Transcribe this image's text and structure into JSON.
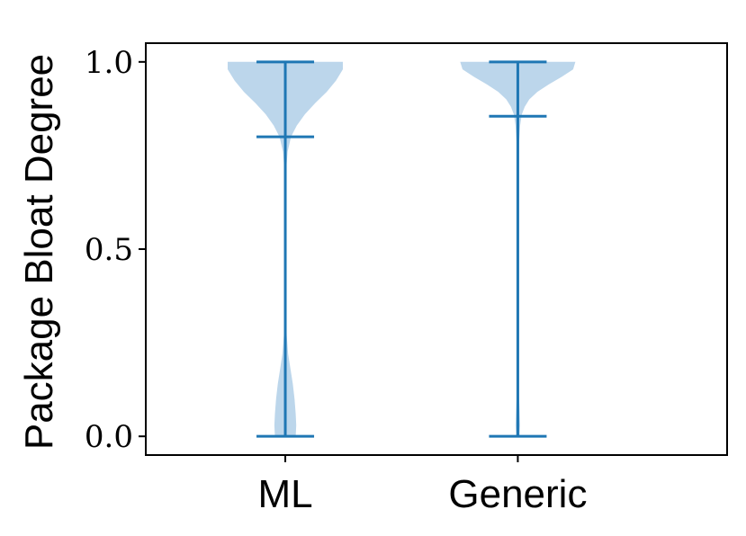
{
  "chart_data": {
    "type": "violin",
    "title": "",
    "xlabel": "",
    "ylabel": "Package Bloat Degree",
    "categories": [
      "ML",
      "Generic"
    ],
    "ylim": [
      -0.05,
      1.05
    ],
    "yticks": [
      {
        "value": 0.0,
        "label": "0.0"
      },
      {
        "value": 0.5,
        "label": "0.5"
      },
      {
        "value": 1.0,
        "label": "1.0"
      }
    ],
    "grid": false,
    "legend": "none",
    "colors": {
      "body": "#bcd6eb",
      "lines": "#1f77b4"
    },
    "series": [
      {
        "category": "ML",
        "min": 0.0,
        "max": 1.0,
        "median": 0.8,
        "density": [
          [
            1.0,
            0.5
          ],
          [
            0.98,
            0.5
          ],
          [
            0.95,
            0.44
          ],
          [
            0.92,
            0.36
          ],
          [
            0.89,
            0.26
          ],
          [
            0.86,
            0.17
          ],
          [
            0.83,
            0.1
          ],
          [
            0.8,
            0.05
          ],
          [
            0.76,
            0.02
          ],
          [
            0.72,
            0.01
          ],
          [
            0.6,
            0.004
          ],
          [
            0.45,
            0.004
          ],
          [
            0.33,
            0.006
          ],
          [
            0.27,
            0.012
          ],
          [
            0.22,
            0.025
          ],
          [
            0.18,
            0.045
          ],
          [
            0.14,
            0.065
          ],
          [
            0.1,
            0.08
          ],
          [
            0.06,
            0.09
          ],
          [
            0.03,
            0.095
          ],
          [
            0.0,
            0.09
          ]
        ]
      },
      {
        "category": "Generic",
        "min": 0.0,
        "max": 1.0,
        "median": 0.855,
        "density": [
          [
            1.0,
            0.5
          ],
          [
            0.98,
            0.48
          ],
          [
            0.96,
            0.38
          ],
          [
            0.94,
            0.27
          ],
          [
            0.92,
            0.17
          ],
          [
            0.9,
            0.1
          ],
          [
            0.88,
            0.06
          ],
          [
            0.86,
            0.035
          ],
          [
            0.83,
            0.02
          ],
          [
            0.78,
            0.01
          ],
          [
            0.6,
            0.004
          ],
          [
            0.3,
            0.004
          ],
          [
            0.12,
            0.008
          ],
          [
            0.07,
            0.015
          ],
          [
            0.03,
            0.02
          ],
          [
            0.0,
            0.015
          ]
        ]
      }
    ]
  }
}
